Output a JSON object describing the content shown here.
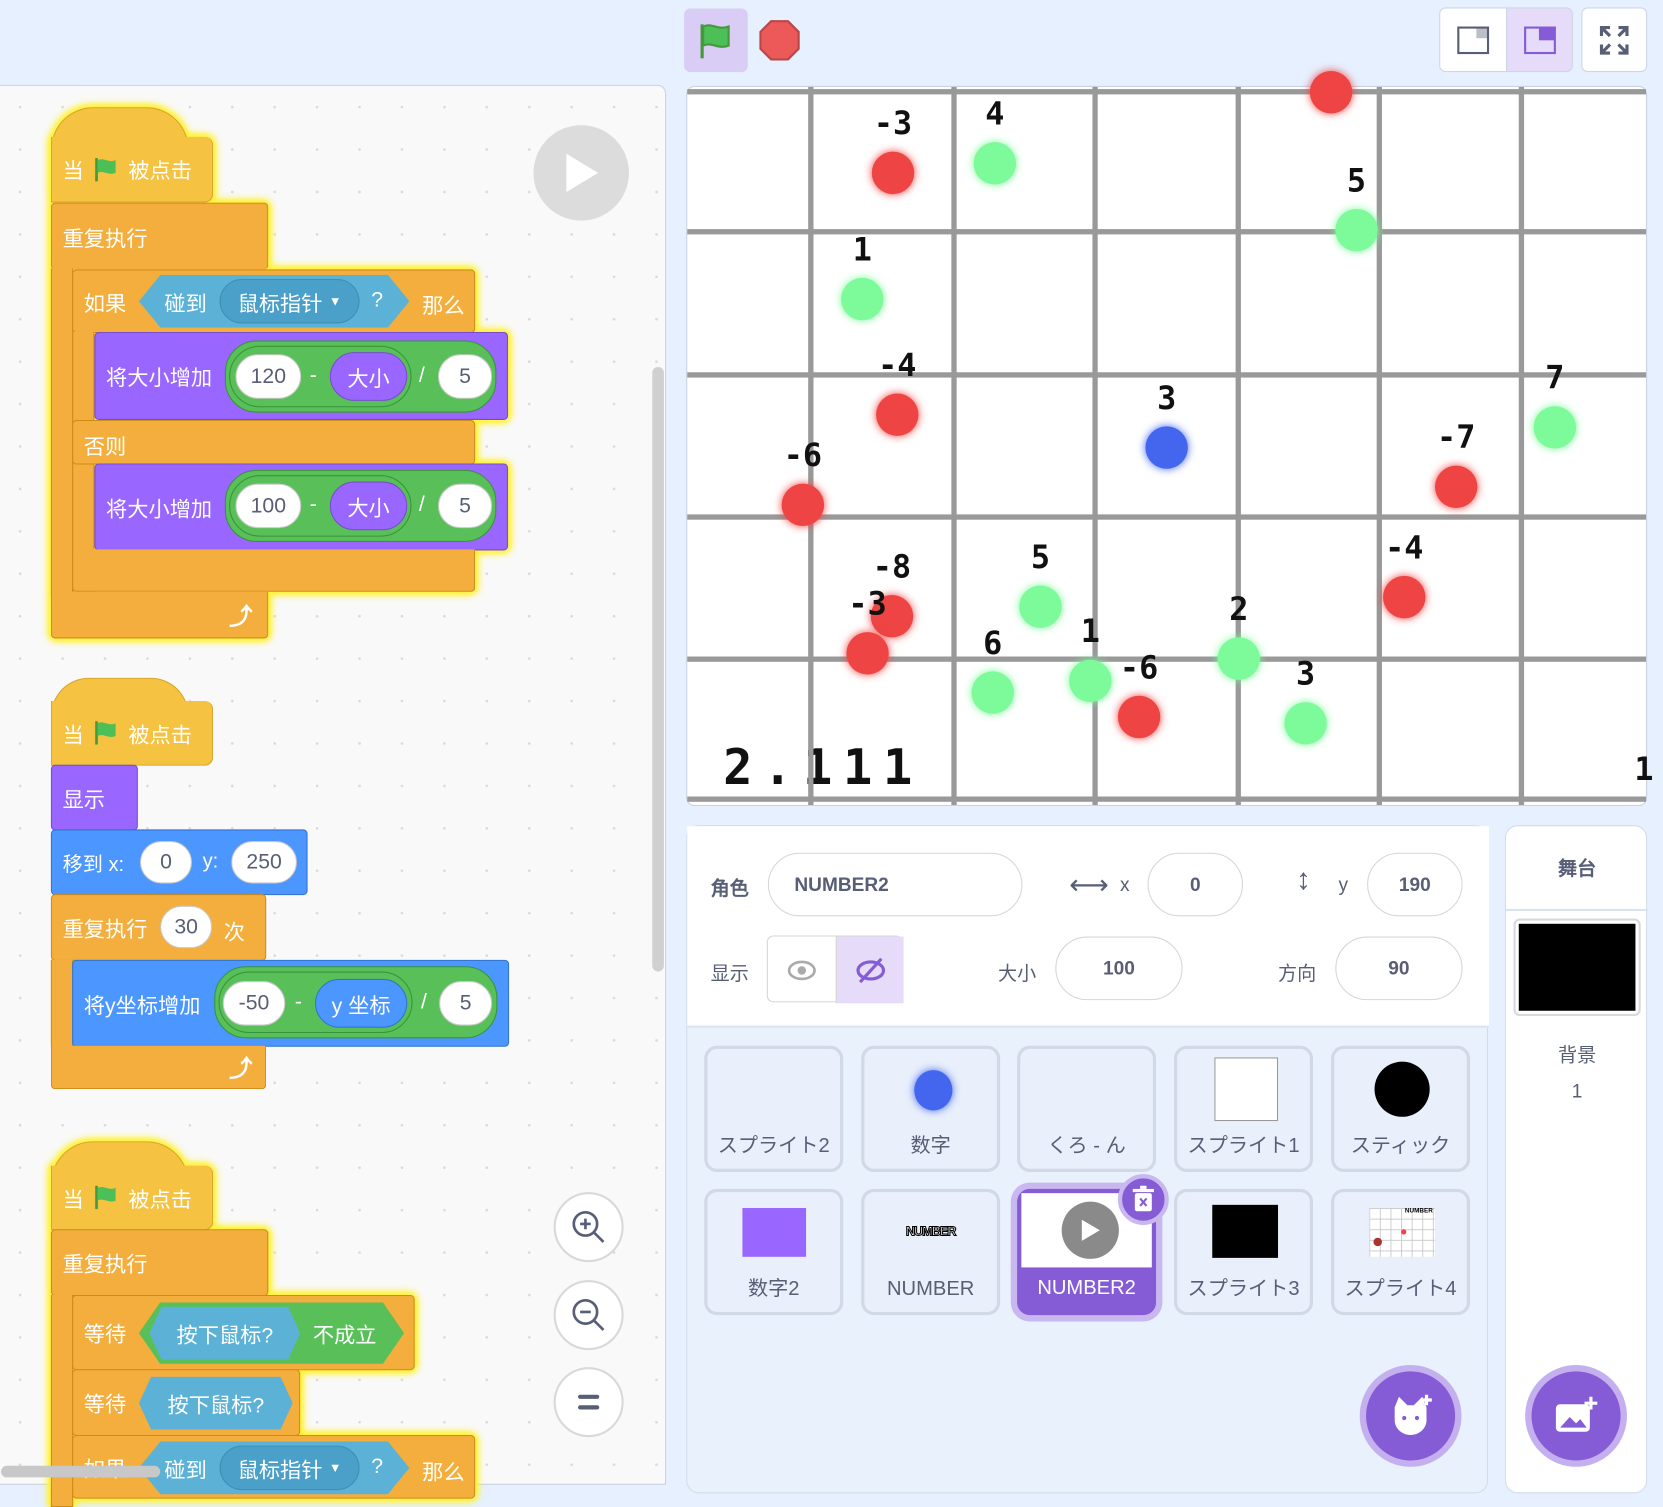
{
  "toolbar": {
    "green_flag": "green-flag",
    "stop": "stop",
    "layout_small": "small-stage",
    "layout_normal": "normal-stage",
    "fullscreen": "fullscreen"
  },
  "colors": {
    "accent": "#855cd6",
    "events": "#f5c242",
    "control": "#f3ae3d",
    "looks": "#9966ff",
    "motion": "#4c97ff",
    "operators": "#59c059",
    "sensing": "#5cb1d6",
    "red_dot": "#ee4444",
    "green_dot": "#7dfa9a",
    "blue_dot": "#4466ee"
  },
  "scripts": [
    {
      "hat": {
        "when": "当",
        "clicked": "被点击"
      },
      "forever": "重复执行",
      "if": "如果",
      "touching": "碰到",
      "target": "鼠标指针",
      "q": "?",
      "then": "那么",
      "change1": {
        "label": "将大小增加",
        "a": "120",
        "minus": "-",
        "size": "大小",
        "div": "/",
        "b": "5"
      },
      "else": "否则",
      "change2": {
        "label": "将大小增加",
        "a": "100",
        "minus": "-",
        "size": "大小",
        "div": "/",
        "b": "5"
      }
    },
    {
      "hat": {
        "when": "当",
        "clicked": "被点击"
      },
      "show": "显示",
      "goto": {
        "label": "移到 x:",
        "x": "0",
        "ylabel": "y:",
        "y": "250"
      },
      "repeat": {
        "label": "重复执行",
        "n": "30",
        "times": "次"
      },
      "changey": {
        "label": "将y坐标增加",
        "a": "-50",
        "minus": "-",
        "ypos": "y 坐标",
        "div": "/",
        "b": "5"
      }
    },
    {
      "hat": {
        "when": "当",
        "clicked": "被点击"
      },
      "forever": "重复执行",
      "wait1": {
        "label": "等待",
        "cond": "按下鼠标?",
        "not": "不成立"
      },
      "wait2": {
        "label": "等待",
        "cond": "按下鼠标?"
      },
      "if": "如果",
      "touching": "碰到",
      "target": "鼠标指针",
      "q": "?",
      "then": "那么"
    }
  ],
  "stage": {
    "labels": [
      "-3",
      "4",
      "5",
      "1",
      "-4",
      "3",
      "7",
      "-7",
      "-6",
      "-8",
      "-3",
      "5",
      "6",
      "1",
      "-6",
      "2",
      "3",
      "-4"
    ],
    "counter": "2.111",
    "edge_text": "1"
  },
  "sprite_info": {
    "sprite_label": "角色",
    "sprite_name": "NUMBER2",
    "x_label": "x",
    "x": "0",
    "y_label": "y",
    "y": "190",
    "show_label": "显示",
    "size_label": "大小",
    "size": "100",
    "direction_label": "方向",
    "direction": "90",
    "visible": false
  },
  "sprites": [
    {
      "name": "スプライト2"
    },
    {
      "name": "数字"
    },
    {
      "name": "くろ - ん"
    },
    {
      "name": "スプライト1"
    },
    {
      "name": "スティック"
    },
    {
      "name": "数字2"
    },
    {
      "name": "NUMBER",
      "thumb": "NUMBER"
    },
    {
      "name": "NUMBER2",
      "selected": true
    },
    {
      "name": "スプライト3"
    },
    {
      "name": "スプライト4",
      "thumb": "NUMBER"
    }
  ],
  "stage_panel": {
    "title": "舞台",
    "backdrops_label": "背景",
    "backdrops_count": "1"
  }
}
